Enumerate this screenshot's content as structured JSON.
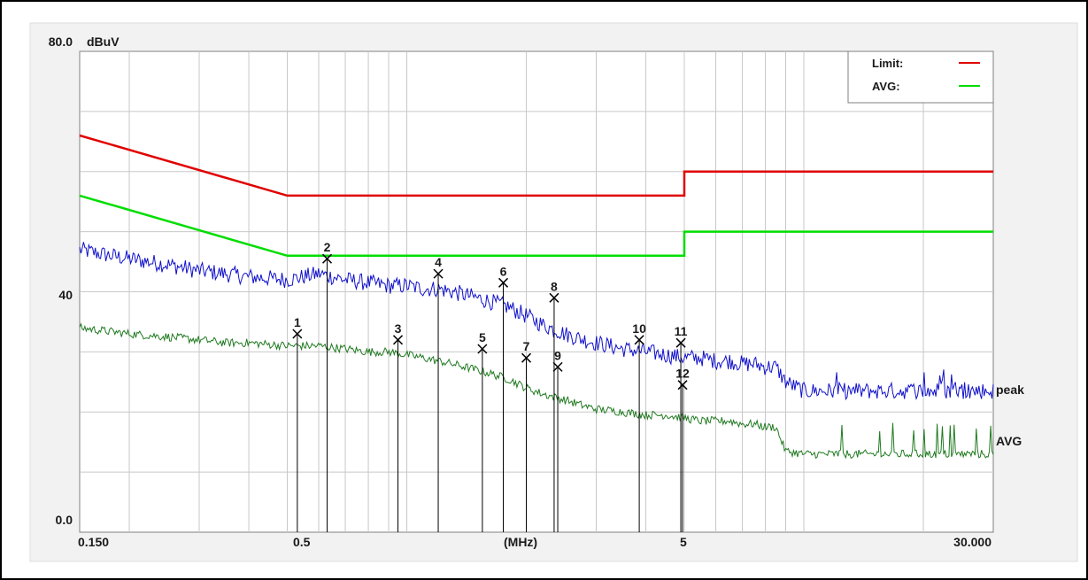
{
  "chart_data": {
    "type": "line",
    "ylabel": "dBuV",
    "xlabel": "(MHz)",
    "x_scale": "log",
    "xlim": [
      0.15,
      30.0
    ],
    "ylim": [
      0.0,
      80.0
    ],
    "y_ticks": [
      {
        "value": 80,
        "label": "80.0"
      },
      {
        "value": 40,
        "label": "40"
      },
      {
        "value": 0,
        "label": "0.0"
      }
    ],
    "x_ticks": [
      {
        "value": 0.15,
        "label": "0.150"
      },
      {
        "value": 0.5,
        "label": "0.5"
      },
      {
        "value": 5,
        "label": "5"
      },
      {
        "value": 30,
        "label": "30.000"
      }
    ],
    "grid": true,
    "legend_position": "top-right",
    "legend": [
      {
        "label": "Limit:",
        "color": "#e00000"
      },
      {
        "label": "AVG:",
        "color": "#00dd00"
      }
    ],
    "limit_lines": [
      {
        "name": "Limit",
        "color": "#e00000",
        "x": [
          0.15,
          0.5,
          5,
          5,
          30
        ],
        "y": [
          66,
          56,
          56,
          60,
          60
        ]
      },
      {
        "name": "AVG",
        "color": "#00dd00",
        "x": [
          0.15,
          0.5,
          5,
          5,
          30
        ],
        "y": [
          56,
          46,
          46,
          50,
          50
        ]
      }
    ],
    "series": [
      {
        "name": "peak",
        "color": "#1010cc",
        "x": [
          0.15,
          0.18,
          0.2,
          0.25,
          0.3,
          0.35,
          0.4,
          0.5,
          0.55,
          0.6,
          0.65,
          0.7,
          0.8,
          0.9,
          1.0,
          1.1,
          1.2,
          1.3,
          1.4,
          1.5,
          1.6,
          1.8,
          2.0,
          2.2,
          2.5,
          2.8,
          3.0,
          3.5,
          4.0,
          4.5,
          5.0,
          5.5,
          6.0,
          6.5,
          7.0,
          7.5,
          8.0,
          8.5,
          9.0,
          10,
          12,
          15,
          20,
          25,
          30
        ],
        "y": [
          47,
          46,
          45.5,
          44.5,
          43.5,
          43,
          42.5,
          42,
          42.5,
          43,
          42.5,
          42,
          41.5,
          41,
          41,
          40.5,
          40.5,
          40,
          39.5,
          39,
          38.5,
          37.5,
          36,
          34.5,
          33,
          32,
          31.5,
          30.5,
          30,
          29.5,
          29,
          29,
          28.5,
          28.5,
          28,
          28,
          27.5,
          27.5,
          25,
          23.5,
          23.5,
          23.5,
          23.5,
          23.5,
          23.5
        ],
        "label": "peak"
      },
      {
        "name": "AVG",
        "color": "#207a20",
        "x": [
          0.15,
          0.2,
          0.25,
          0.3,
          0.35,
          0.4,
          0.5,
          0.6,
          0.7,
          0.8,
          0.9,
          1.0,
          1.1,
          1.2,
          1.3,
          1.4,
          1.5,
          1.6,
          1.8,
          2.0,
          2.2,
          2.5,
          2.8,
          3.0,
          3.5,
          4.0,
          4.5,
          5.0,
          5.5,
          6.0,
          6.5,
          7.0,
          7.5,
          8.0,
          8.5,
          9.0,
          10,
          12,
          15,
          20,
          25,
          30
        ],
        "y": [
          34,
          33,
          32.5,
          32,
          31.5,
          31.5,
          31,
          31,
          30.5,
          30,
          30,
          29.5,
          29,
          28.5,
          28,
          27.5,
          27,
          26.5,
          25.5,
          24,
          23,
          22,
          21,
          20.5,
          20,
          19.5,
          19.5,
          19,
          18.5,
          18.5,
          18.5,
          18,
          18,
          17.5,
          17.5,
          13.5,
          13,
          13,
          13,
          13,
          13,
          13
        ],
        "label": "AVG"
      }
    ],
    "markers": [
      {
        "label": "1",
        "x": 0.53,
        "y": 33
      },
      {
        "label": "2",
        "x": 0.63,
        "y": 45.5
      },
      {
        "label": "3",
        "x": 0.95,
        "y": 32
      },
      {
        "label": "4",
        "x": 1.2,
        "y": 43
      },
      {
        "label": "5",
        "x": 1.55,
        "y": 30.5
      },
      {
        "label": "6",
        "x": 1.75,
        "y": 41.5
      },
      {
        "label": "7",
        "x": 2.0,
        "y": 29
      },
      {
        "label": "8",
        "x": 2.35,
        "y": 39
      },
      {
        "label": "9",
        "x": 2.4,
        "y": 27.5
      },
      {
        "label": "10",
        "x": 3.85,
        "y": 32
      },
      {
        "label": "11",
        "x": 4.9,
        "y": 31.5
      },
      {
        "label": "12",
        "x": 4.95,
        "y": 24.5
      }
    ]
  }
}
